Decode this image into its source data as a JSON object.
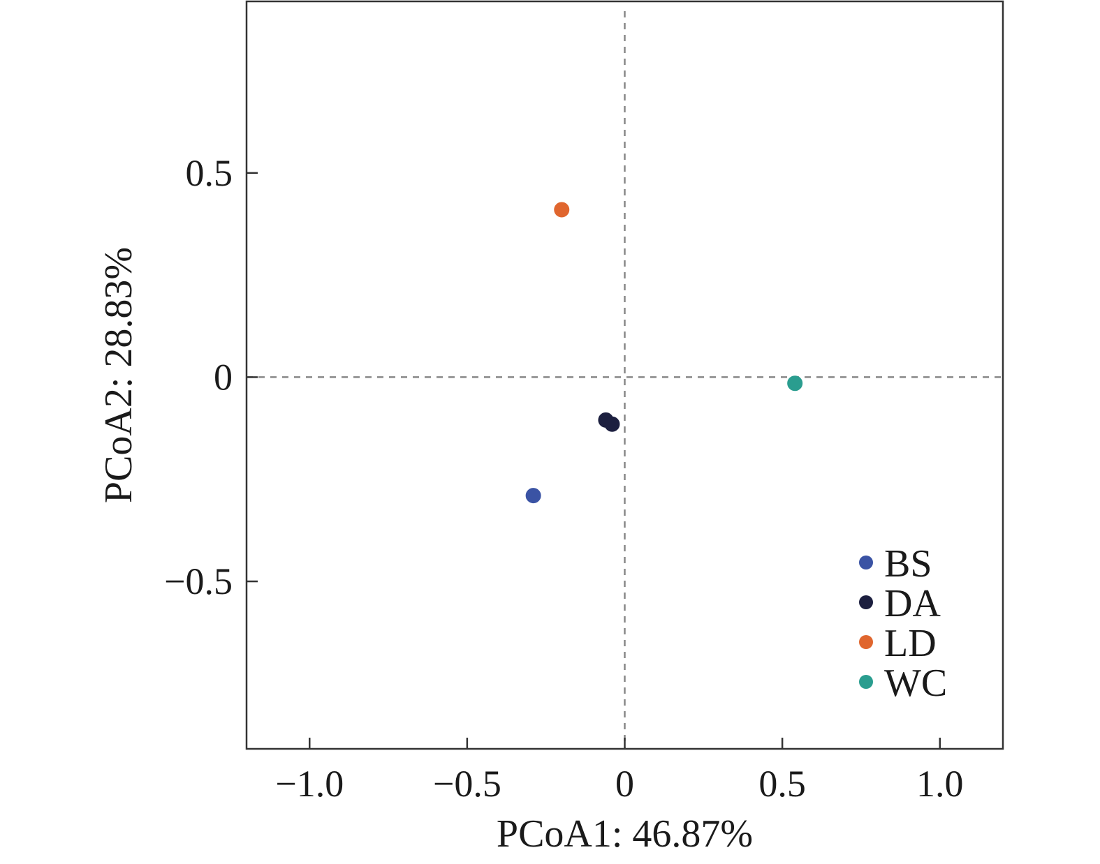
{
  "chart_data": {
    "type": "scatter",
    "xlabel": "PCoA1: 46.87%",
    "ylabel": "PCoA2: 28.83%",
    "xlim": [
      -1.2,
      1.2
    ],
    "ylim": [
      -0.91,
      0.92
    ],
    "xticks": [
      -1.0,
      -0.5,
      0,
      0.5,
      1.0
    ],
    "xtick_labels": [
      "−1.0",
      "−0.5",
      "0",
      "0.5",
      "1.0"
    ],
    "yticks": [
      -0.5,
      0,
      0.5
    ],
    "ytick_labels": [
      "−0.5",
      "0",
      "0.5"
    ],
    "reference_lines": {
      "x": 0,
      "y": 0,
      "style": "dashed"
    },
    "legend_position": "bottom-right",
    "series": [
      {
        "name": "BS",
        "color": "#3a53a4",
        "points": [
          {
            "x": -0.29,
            "y": -0.29
          }
        ]
      },
      {
        "name": "DA",
        "color": "#1c1f3f",
        "points": [
          {
            "x": -0.06,
            "y": -0.105
          },
          {
            "x": -0.04,
            "y": -0.115
          }
        ]
      },
      {
        "name": "LD",
        "color": "#e0662e",
        "points": [
          {
            "x": -0.2,
            "y": 0.41
          }
        ]
      },
      {
        "name": "WC",
        "color": "#2a9d8f",
        "points": [
          {
            "x": 0.54,
            "y": -0.015
          }
        ]
      }
    ]
  }
}
